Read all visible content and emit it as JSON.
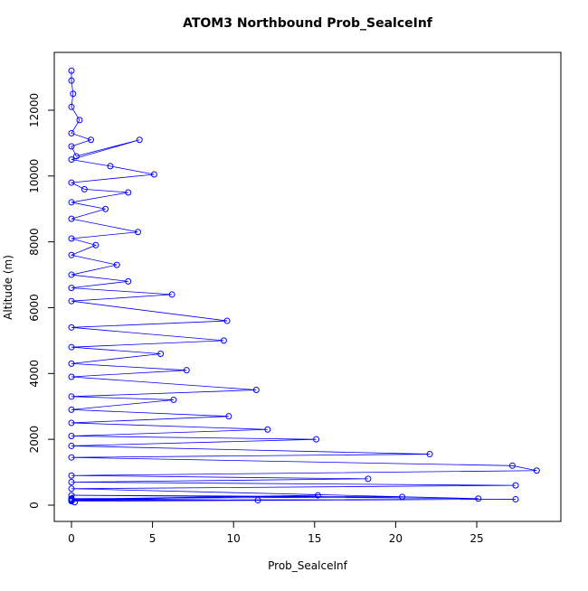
{
  "chart_data": {
    "type": "line",
    "title": "ATOM3 Northbound Prob_SealceInf",
    "x_label": "Prob_SealceInf",
    "y_label": "Altitude (m)",
    "x": [
      0,
      0,
      0.1,
      0,
      0.5,
      0,
      1.2,
      0,
      0.3,
      4.2,
      0,
      2.4,
      5.1,
      0,
      0.8,
      3.5,
      0,
      2.1,
      0,
      4.1,
      0,
      1.5,
      0,
      2.8,
      0,
      3.5,
      0,
      6.2,
      0,
      9.6,
      0,
      9.4,
      0,
      5.5,
      0,
      7.1,
      0,
      11.4,
      0,
      6.3,
      0,
      9.7,
      0,
      12.1,
      0,
      15.1,
      0,
      22.1,
      0,
      27.2,
      28.7,
      0,
      18.3,
      0,
      27.4,
      0,
      25.1,
      0,
      20.4,
      0,
      11.5,
      0,
      15.2,
      0,
      27.4,
      0,
      0.2
    ],
    "series": [
      {
        "color": "#0000ff",
        "values": [
          13200,
          12900,
          12500,
          12100,
          11700,
          11300,
          11100,
          10900,
          10600,
          11100,
          10500,
          10300,
          10050,
          9800,
          9600,
          9500,
          9200,
          9000,
          8700,
          8300,
          8100,
          7900,
          7600,
          7300,
          7000,
          6800,
          6600,
          6400,
          6200,
          5600,
          5400,
          5000,
          4800,
          4600,
          4300,
          4100,
          3900,
          3500,
          3300,
          3200,
          2900,
          2700,
          2500,
          2300,
          2100,
          2000,
          1800,
          1550,
          1450,
          1200,
          1050,
          900,
          800,
          700,
          600,
          500,
          200,
          300,
          250,
          200,
          150,
          180,
          300,
          150,
          180,
          120,
          90
        ]
      }
    ],
    "xlim": [
      -1.06,
      30.19
    ],
    "ylim": [
      -494,
      13756
    ],
    "xticks": [
      0,
      5,
      10,
      15,
      20,
      25
    ],
    "yticks": [
      0,
      2000,
      4000,
      6000,
      8000,
      10000,
      12000
    ]
  }
}
